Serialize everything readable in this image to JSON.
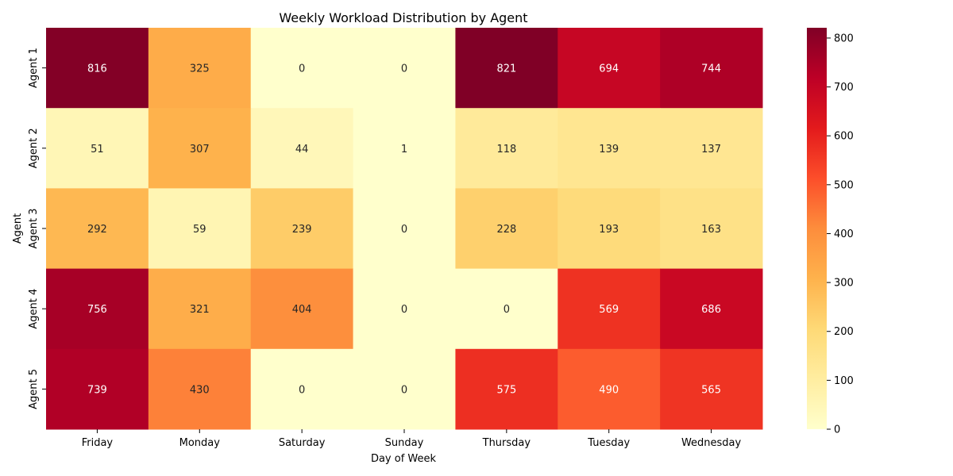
{
  "chart_data": {
    "type": "heatmap",
    "title": "Weekly Workload Distribution by Agent",
    "xlabel": "Day of Week",
    "ylabel": "Agent",
    "x_categories": [
      "Friday",
      "Monday",
      "Saturday",
      "Sunday",
      "Thursday",
      "Tuesday",
      "Wednesday"
    ],
    "y_categories": [
      "Agent 1",
      "Agent 2",
      "Agent 3",
      "Agent 4",
      "Agent 5"
    ],
    "values": [
      [
        816,
        325,
        0,
        0,
        821,
        694,
        744
      ],
      [
        51,
        307,
        44,
        1,
        118,
        139,
        137
      ],
      [
        292,
        59,
        239,
        0,
        228,
        193,
        163
      ],
      [
        756,
        321,
        404,
        0,
        0,
        569,
        686
      ],
      [
        739,
        430,
        0,
        0,
        575,
        490,
        565
      ]
    ],
    "value_range": [
      0,
      821
    ],
    "colormap": "YlOrRd",
    "colormap_stops": [
      "#ffffcc",
      "#ffeda0",
      "#fed976",
      "#feb24c",
      "#fd8d3c",
      "#fc4e2a",
      "#e31a1c",
      "#bd0026",
      "#800026"
    ],
    "colorbar_ticks": [
      0,
      100,
      200,
      300,
      400,
      500,
      600,
      700,
      800
    ],
    "annotate": true,
    "grid": false
  }
}
